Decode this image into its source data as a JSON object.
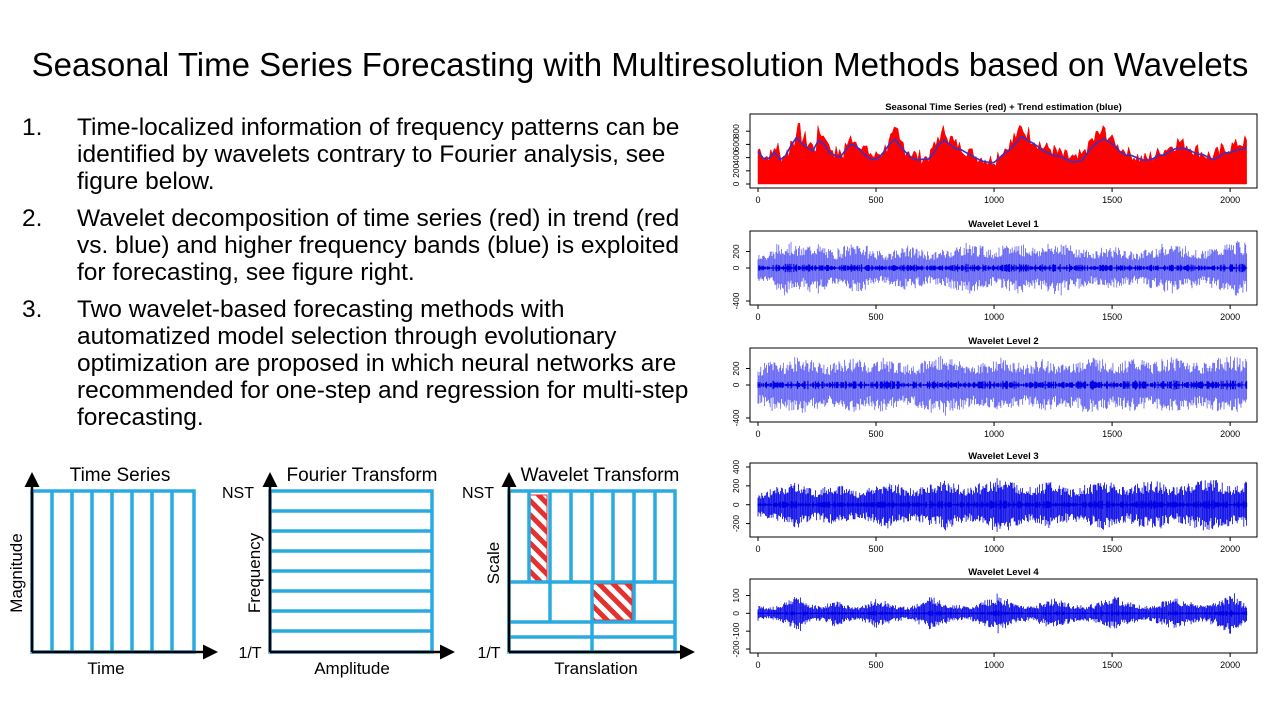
{
  "slide": {
    "title": "Seasonal Time Series Forecasting with Multiresolution Methods based on Wavelets"
  },
  "bullets": [
    {
      "num": "1.",
      "text": "Time-localized information of frequency patterns can be identified by wavelets contrary to Fourier analysis, see figure below."
    },
    {
      "num": "2.",
      "text": "Wavelet decomposition of time series (red) in trend (red vs. blue) and higher frequency bands (blue) is exploited for forecasting, see figure right."
    },
    {
      "num": "3.",
      "text": "Two wavelet-based forecasting methods with automatized model selection through evolutionary optimization are proposed in which neural networks are recommended for one-step and regression for multi-step forecasting."
    }
  ],
  "diagrams": {
    "time_series": {
      "title": "Time Series",
      "ylabel": "Magnitude",
      "xlabel": "Time"
    },
    "fourier": {
      "title": "Fourier Transform",
      "ylabel": "Frequency",
      "xlabel": "Amplitude",
      "top_tick": "NST",
      "bottom_tick": "1/T"
    },
    "wavelet": {
      "title": "Wavelet Transform",
      "ylabel": "Scale",
      "xlabel": "Translation",
      "top_tick": "NST",
      "bottom_tick": "1/T"
    }
  },
  "colors": {
    "grid": "#29abe2",
    "series_red": "#ff0000",
    "trend_blue": "#3333cc",
    "band_blue": "#6e6ef5",
    "band_dark": "#0000e6",
    "hatch": "#e53030"
  },
  "chart_data": [
    {
      "type": "area",
      "title": "Seasonal Time Series (red) + Trend estimation (blue)",
      "xlim": [
        0,
        2080
      ],
      "xticks": [
        "0",
        "500",
        "1000",
        "1500",
        "2000"
      ],
      "ylim": [
        0,
        1000
      ],
      "yticks": [
        "0",
        "200",
        "400",
        "600",
        "800"
      ],
      "series": [
        {
          "values": [
            520,
            420,
            440,
            560,
            420,
            480,
            640,
            820,
            700,
            620,
            560,
            780,
            720,
            540,
            480,
            440,
            600,
            700,
            640,
            540,
            480,
            420,
            460,
            540,
            700,
            760,
            620,
            520,
            460,
            420,
            400,
            420,
            560,
            720,
            800,
            680,
            600,
            560,
            520,
            460,
            420,
            400,
            360,
            380,
            460,
            540,
            620,
            720,
            840,
            780,
            700,
            620,
            560,
            540,
            500,
            460,
            420,
            400,
            360,
            420,
            540,
            660,
            740,
            800,
            720,
            640,
            560,
            520,
            460,
            420,
            380,
            380,
            420,
            460,
            520,
            560,
            600,
            640,
            600,
            560,
            520,
            480,
            440,
            420,
            460,
            520,
            560,
            580,
            620,
            640
          ]
        },
        {
          "values": [
            480,
            380,
            400,
            480,
            380,
            420,
            560,
            700,
            620,
            560,
            500,
            660,
            620,
            480,
            420,
            400,
            520,
            600,
            560,
            480,
            420,
            380,
            400,
            480,
            600,
            660,
            560,
            460,
            400,
            380,
            360,
            380,
            480,
            620,
            680,
            600,
            540,
            500,
            460,
            420,
            380,
            360,
            330,
            340,
            400,
            480,
            540,
            620,
            720,
            680,
            620,
            560,
            500,
            480,
            450,
            420,
            380,
            360,
            330,
            380,
            480,
            580,
            640,
            680,
            620,
            560,
            500,
            460,
            420,
            380,
            350,
            350,
            380,
            420,
            460,
            500,
            530,
            560,
            530,
            500,
            460,
            430,
            400,
            380,
            410,
            460,
            500,
            520,
            540,
            560
          ]
        }
      ]
    },
    {
      "type": "line",
      "title": "Wavelet Level 1",
      "xlim": [
        0,
        2080
      ],
      "xticks": [
        "0",
        "500",
        "1000",
        "1500",
        "2000"
      ],
      "ylim": [
        -400,
        400
      ],
      "yticks": [
        "-400",
        "0",
        "200"
      ],
      "series": [
        {
          "values": [
            0
          ],
          "envelope": [
            200,
            160,
            220,
            280,
            320,
            300,
            260,
            240,
            280,
            300,
            260,
            220,
            200,
            240,
            260,
            280,
            300,
            260,
            220,
            200,
            180,
            200,
            220,
            240,
            260,
            240,
            220,
            200,
            180,
            200,
            220,
            240,
            260,
            280,
            300,
            280,
            260,
            240,
            220,
            240,
            260,
            280,
            300,
            280,
            260,
            240,
            260,
            280,
            300,
            320,
            280,
            260,
            240,
            220,
            200,
            220,
            240,
            260,
            240,
            220,
            200,
            180,
            200,
            220,
            240,
            260,
            280,
            300,
            280,
            260,
            240,
            220,
            200,
            220,
            240,
            260,
            280,
            300,
            320,
            300
          ]
        }
      ]
    },
    {
      "type": "line",
      "title": "Wavelet Level 2",
      "xlim": [
        0,
        2080
      ],
      "xticks": [
        "0",
        "500",
        "1000",
        "1500",
        "2000"
      ],
      "ylim": [
        -400,
        400
      ],
      "yticks": [
        "-400",
        "0",
        "200"
      ],
      "series": [
        {
          "values": [
            0
          ],
          "envelope": [
            220,
            260,
            300,
            280,
            260,
            300,
            320,
            340,
            300,
            280,
            260,
            240,
            260,
            280,
            300,
            320,
            300,
            280,
            260,
            300,
            320,
            300,
            280,
            260,
            240,
            260,
            280,
            300,
            320,
            340,
            360,
            320,
            300,
            280,
            260,
            240,
            260,
            280,
            300,
            320,
            300,
            280,
            260,
            240,
            260,
            280,
            300,
            280,
            260,
            240,
            260,
            280,
            300,
            320,
            340,
            320,
            300,
            280,
            260,
            280,
            300,
            320,
            300,
            280,
            260,
            280,
            300,
            320,
            340,
            320,
            300,
            280,
            260,
            280,
            300,
            320,
            340,
            360,
            320,
            300
          ]
        }
      ]
    },
    {
      "type": "line",
      "title": "Wavelet Level 3",
      "xlim": [
        0,
        2080
      ],
      "xticks": [
        "0",
        "500",
        "1000",
        "1500",
        "2000"
      ],
      "ylim": [
        -300,
        400
      ],
      "yticks": [
        "-200",
        "0",
        "200",
        "400"
      ],
      "series": [
        {
          "values": [
            0
          ],
          "envelope": [
            120,
            140,
            160,
            180,
            200,
            220,
            240,
            200,
            180,
            160,
            180,
            200,
            220,
            200,
            180,
            160,
            140,
            160,
            180,
            200,
            220,
            240,
            220,
            200,
            180,
            160,
            180,
            200,
            220,
            240,
            260,
            240,
            220,
            200,
            180,
            200,
            220,
            240,
            260,
            300,
            260,
            240,
            220,
            200,
            180,
            200,
            220,
            240,
            220,
            200,
            180,
            160,
            180,
            200,
            220,
            240,
            260,
            240,
            220,
            200,
            180,
            200,
            220,
            240,
            260,
            240,
            220,
            200,
            180,
            200,
            220,
            240,
            260,
            280,
            260,
            240,
            220,
            200,
            220,
            240
          ]
        }
      ]
    },
    {
      "type": "line",
      "title": "Wavelet Level 4",
      "xlim": [
        0,
        2080
      ],
      "xticks": [
        "0",
        "500",
        "1000",
        "1500",
        "2000"
      ],
      "ylim": [
        -200,
        170
      ],
      "yticks": [
        "-200",
        "-100",
        "0",
        "100"
      ],
      "series": [
        {
          "values": [
            0
          ],
          "envelope": [
            40,
            30,
            35,
            45,
            60,
            80,
            100,
            70,
            50,
            45,
            40,
            55,
            70,
            60,
            45,
            40,
            35,
            50,
            65,
            80,
            70,
            55,
            45,
            40,
            35,
            45,
            60,
            70,
            90,
            80,
            60,
            50,
            45,
            40,
            35,
            45,
            60,
            75,
            90,
            110,
            80,
            60,
            50,
            45,
            40,
            50,
            60,
            70,
            80,
            70,
            60,
            50,
            45,
            40,
            50,
            60,
            70,
            80,
            90,
            70,
            60,
            50,
            45,
            40,
            45,
            55,
            65,
            75,
            85,
            70,
            60,
            50,
            45,
            50,
            60,
            70,
            90,
            110,
            80,
            60
          ]
        }
      ]
    }
  ]
}
